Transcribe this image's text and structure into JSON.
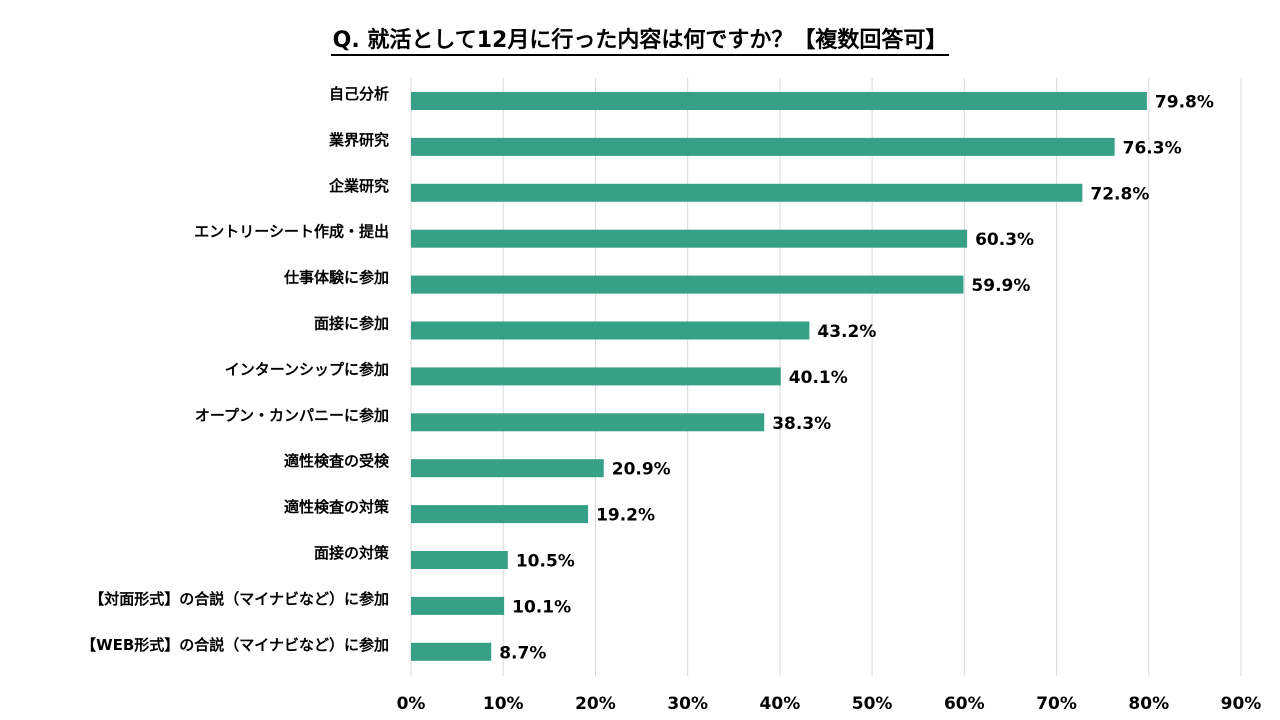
{
  "chart_data": {
    "type": "bar",
    "orientation": "horizontal",
    "title": "Q. 就活として12月に行った内容は何ですか？【複数回答可】",
    "xlabel": "",
    "ylabel": "",
    "xlim": [
      0,
      90
    ],
    "grid": true,
    "legend": "none",
    "bar_color": "#36A187",
    "grid_color": "#D9D9D9",
    "tick_labels": [
      "0%",
      "10%",
      "20%",
      "30%",
      "40%",
      "50%",
      "60%",
      "70%",
      "80%",
      "90%"
    ],
    "tick_values": [
      0,
      10,
      20,
      30,
      40,
      50,
      60,
      70,
      80,
      90
    ],
    "categories": [
      "自己分析",
      "業界研究",
      "企業研究",
      "エントリーシート作成・提出",
      "仕事体験に参加",
      "面接に参加",
      "インターンシップに参加",
      "オープン・カンパニーに参加",
      "適性検査の受検",
      "適性検査の対策",
      "面接の対策",
      "【対面形式】の合説（マイナビなど）に参加",
      "【WEB形式】の合説（マイナビなど）に参加"
    ],
    "values": [
      79.8,
      76.3,
      72.8,
      60.3,
      59.9,
      43.2,
      40.1,
      38.3,
      20.9,
      19.2,
      10.5,
      10.1,
      8.7
    ],
    "value_labels": [
      "79.8%",
      "76.3%",
      "72.8%",
      "60.3%",
      "59.9%",
      "43.2%",
      "40.1%",
      "38.3%",
      "20.9%",
      "19.2%",
      "10.5%",
      "10.1%",
      "8.7%"
    ]
  }
}
